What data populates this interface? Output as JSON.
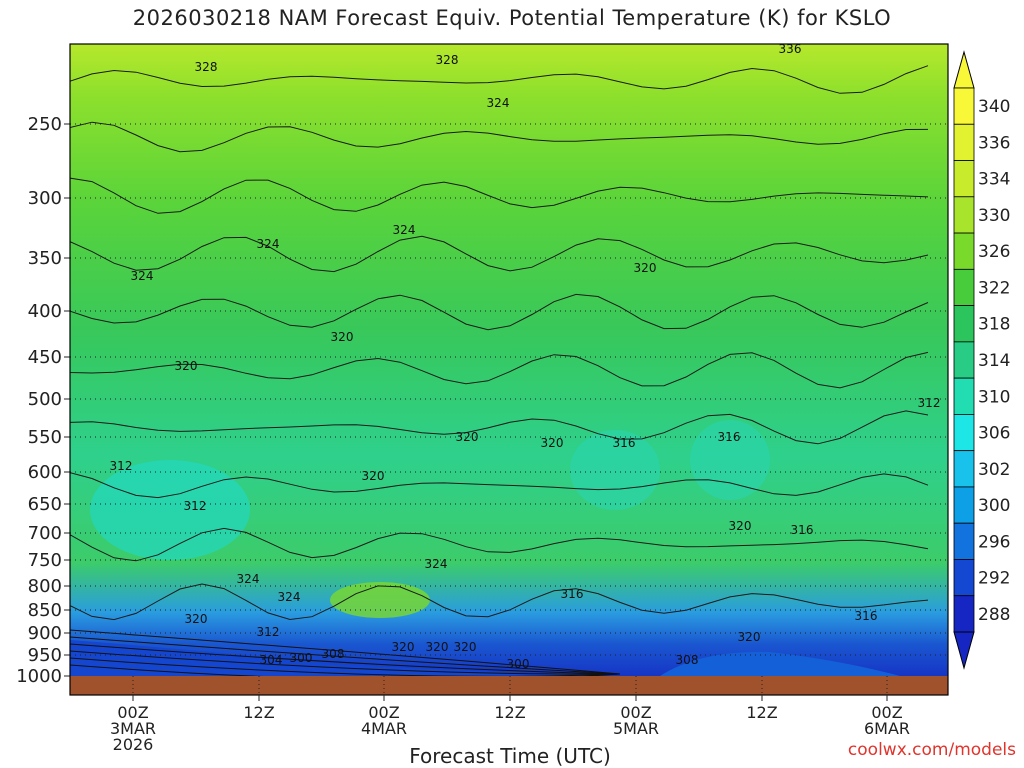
{
  "chart_data": {
    "type": "heatmap",
    "title": "2026030218 NAM Forecast Equiv. Potential Temperature (K) for KSLO",
    "xlabel": "Forecast Time (UTC)",
    "credit": "coolwx.com/models",
    "y_ticks": [
      "250",
      "300",
      "350",
      "400",
      "450",
      "500",
      "550",
      "600",
      "650",
      "700",
      "750",
      "800",
      "850",
      "900",
      "950",
      "1000"
    ],
    "x_ticks": [
      {
        "lines": [
          "00Z",
          "3MAR",
          "2026"
        ]
      },
      {
        "lines": [
          "12Z"
        ]
      },
      {
        "lines": [
          "00Z",
          "4MAR"
        ]
      },
      {
        "lines": [
          "12Z"
        ]
      },
      {
        "lines": [
          "00Z",
          "5MAR"
        ]
      },
      {
        "lines": [
          "12Z"
        ]
      },
      {
        "lines": [
          "00Z",
          "6MAR"
        ]
      }
    ],
    "colorbar": {
      "labels": [
        "340",
        "336",
        "334",
        "330",
        "326",
        "322",
        "318",
        "314",
        "310",
        "306",
        "302",
        "300",
        "296",
        "292",
        "288"
      ],
      "colors": [
        "#f8f838",
        "#e2f230",
        "#c8ec2c",
        "#a8e42c",
        "#7ada2c",
        "#48cc3c",
        "#2cc45c",
        "#28cc84",
        "#22dcb2",
        "#1ee6e6",
        "#18c2ea",
        "#0ea0e6",
        "#1272de",
        "#1448d2",
        "#1626c2"
      ]
    },
    "contour_labels": [
      "336",
      "328",
      "328",
      "324",
      "324",
      "324",
      "324",
      "320",
      "320",
      "320",
      "320",
      "320",
      "320",
      "320",
      "316",
      "316",
      "316",
      "316",
      "312",
      "312",
      "312",
      "320",
      "320",
      "324",
      "324",
      "324",
      "316",
      "320",
      "312",
      "304",
      "300",
      "308",
      "300",
      "308",
      "320",
      "320"
    ],
    "ylim": [
      1000,
      200
    ],
    "grid": "dotted horizontal",
    "field_colors": {
      "ground": "#a0522d",
      "frame": "#000000"
    }
  }
}
